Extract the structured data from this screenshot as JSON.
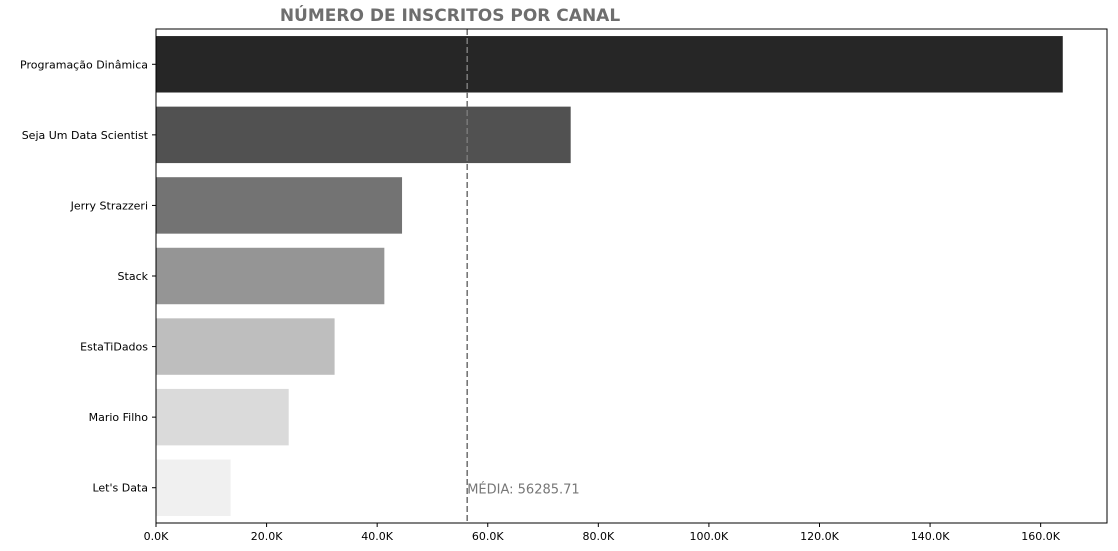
{
  "chart_data": {
    "type": "bar",
    "orientation": "horizontal",
    "title": "NÚMERO DE INSCRITOS POR CANAL",
    "xlabel": "",
    "ylabel": "",
    "categories": [
      "Programação Dinâmica",
      "Seja Um Data Scientist",
      "Jerry Strazzeri",
      "Stack",
      "EstaTiDados",
      "Mario Filho",
      "Let's Data"
    ],
    "values": [
      164000,
      75000,
      44500,
      41300,
      32300,
      24000,
      13500
    ],
    "bar_colors": [
      "#262626",
      "#515151",
      "#737373",
      "#959595",
      "#bebebe",
      "#dadada",
      "#f0f0f0"
    ],
    "xlim": [
      0,
      172000
    ],
    "x_ticks": [
      0,
      20000,
      40000,
      60000,
      80000,
      100000,
      120000,
      140000,
      160000
    ],
    "x_tick_labels": [
      "0.0K",
      "20.0K",
      "40.0K",
      "60.0K",
      "80.0K",
      "100.0K",
      "120.0K",
      "140.0K",
      "160.0K"
    ],
    "mean_line": {
      "value": 56285.71,
      "label": "MÉDIA: 56285.71",
      "color": "#777777",
      "style": "dashed"
    },
    "grid": false,
    "legend": "none"
  }
}
